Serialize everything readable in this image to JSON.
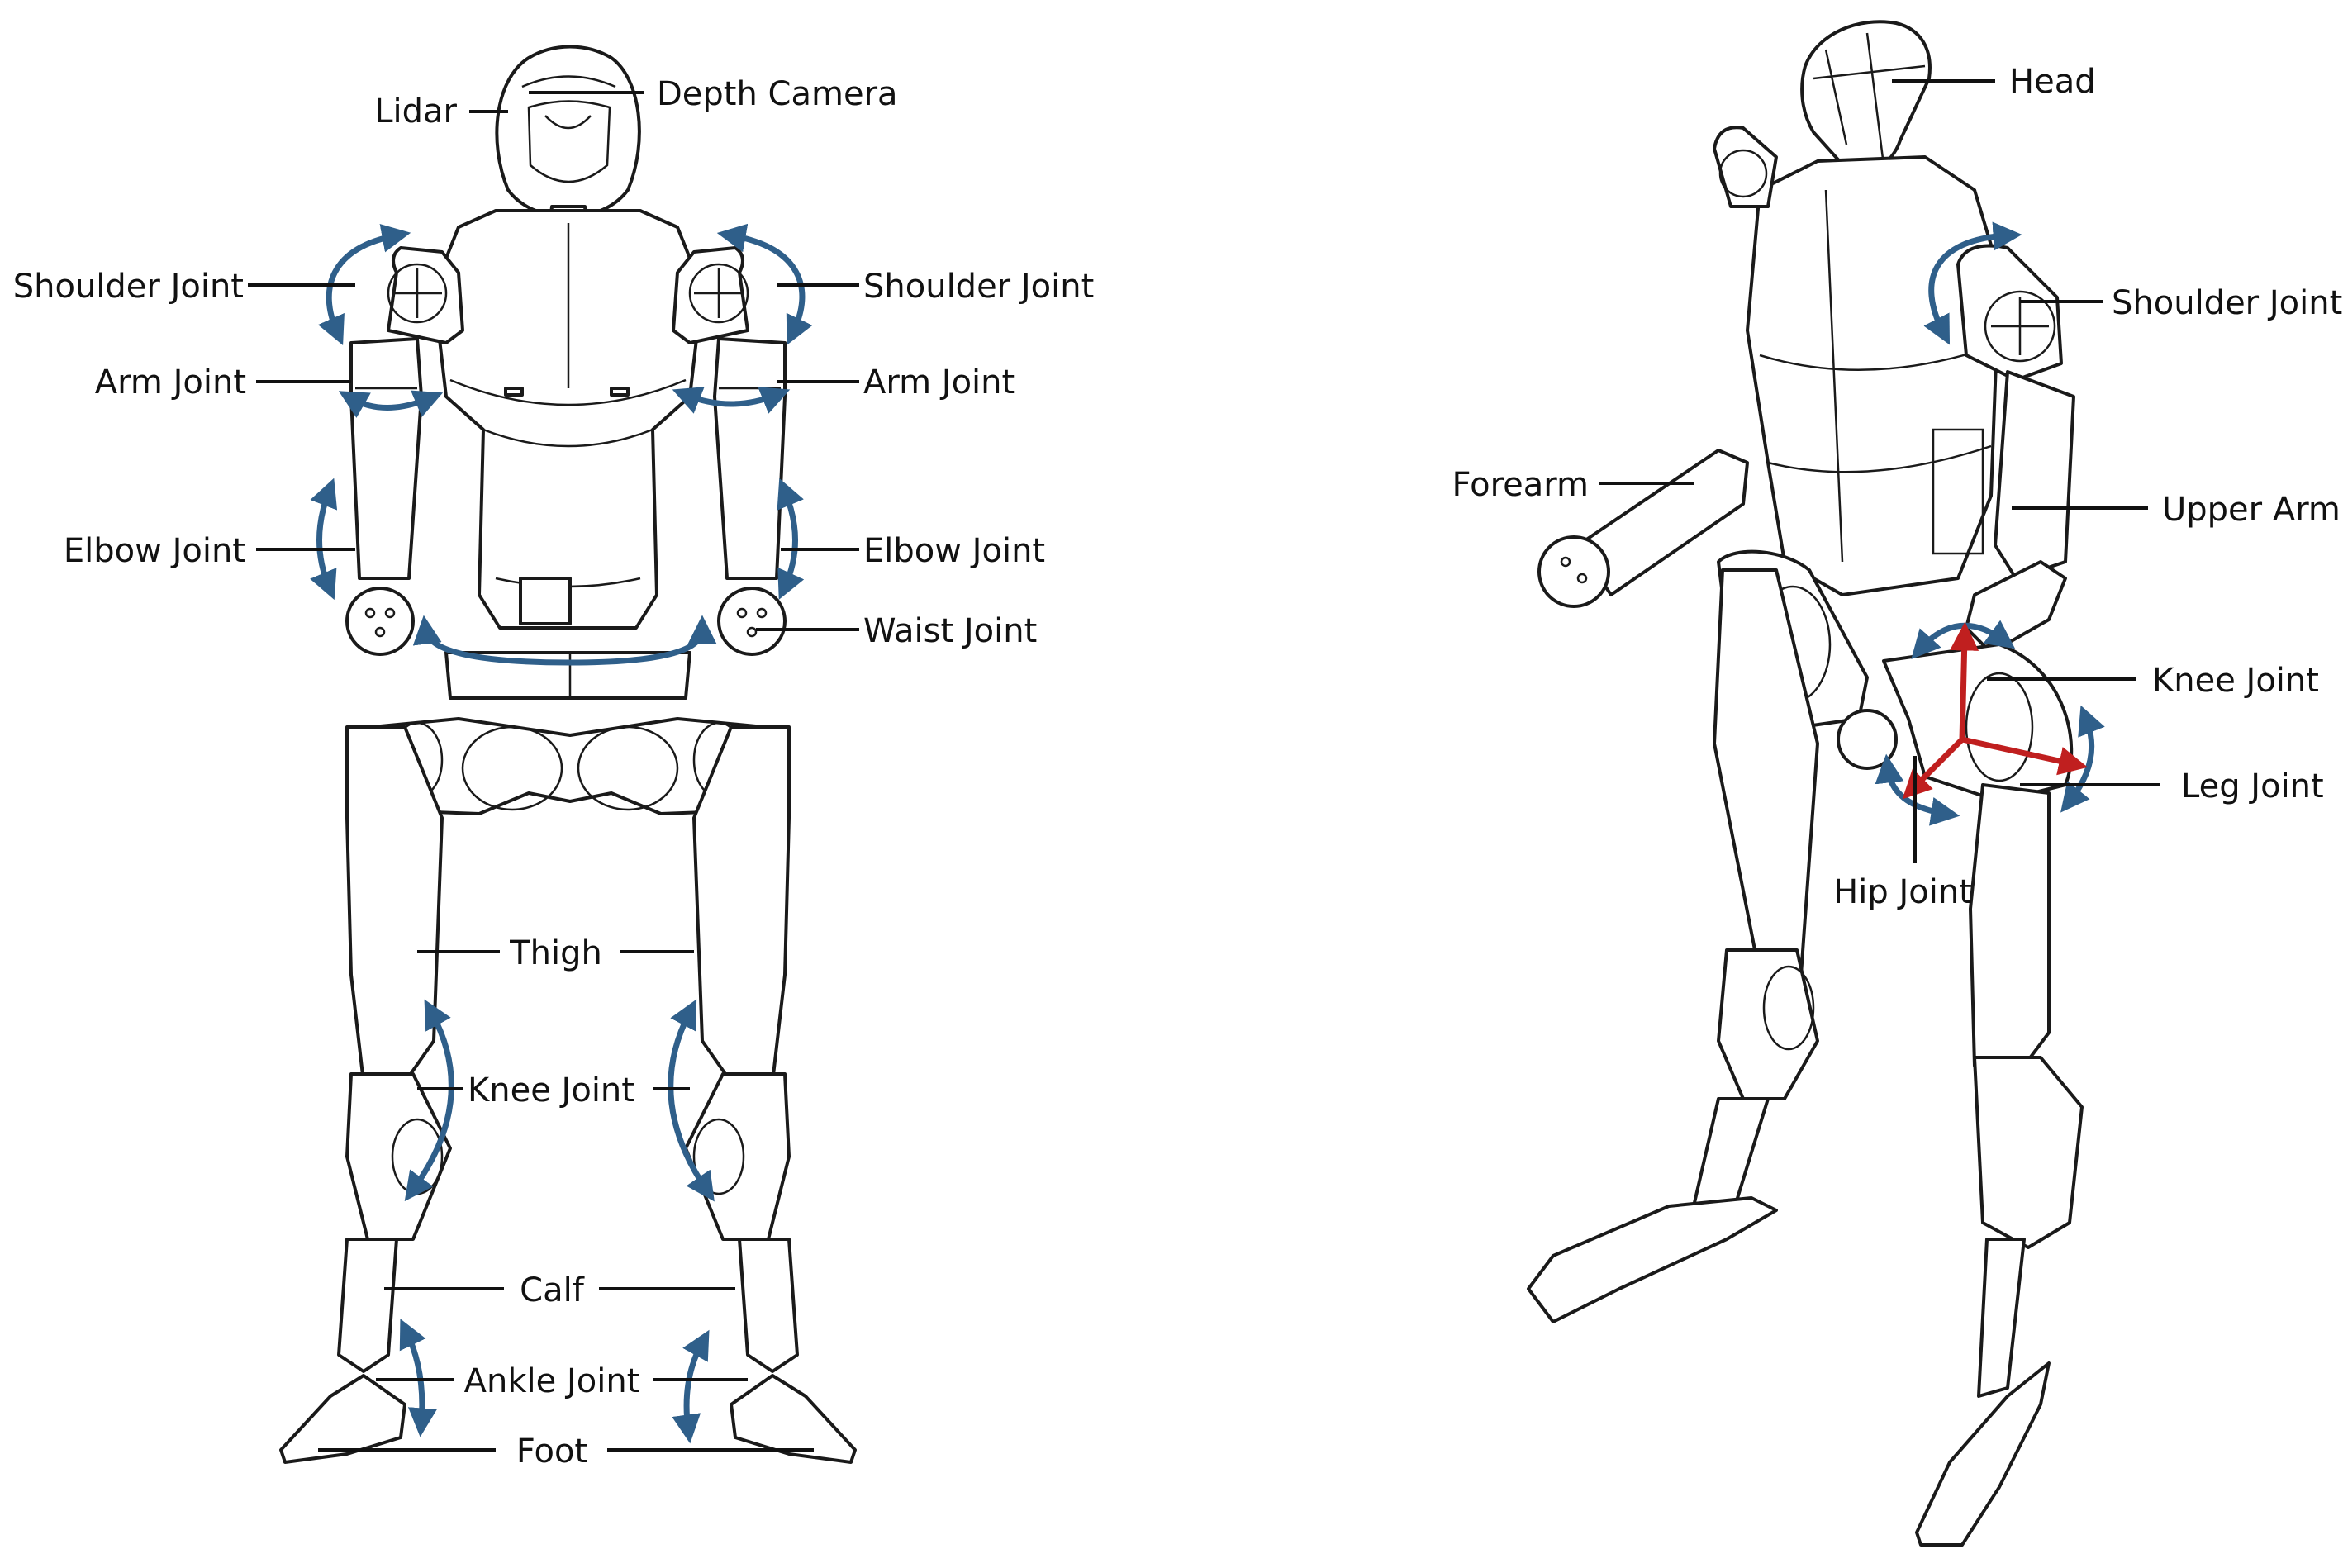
{
  "colors": {
    "rotation_arrow": "#2f5f8a",
    "axis_arrow": "#c01f1f",
    "line_art": "#1a1a1a",
    "background": "#ffffff"
  },
  "front_view": {
    "labels": {
      "lidar": "Lidar",
      "depth_camera": "Depth Camera",
      "shoulder_joint_left": "Shoulder Joint",
      "shoulder_joint_right": "Shoulder Joint",
      "arm_joint_left": "Arm Joint",
      "arm_joint_right": "Arm Joint",
      "elbow_joint_left": "Elbow Joint",
      "elbow_joint_right": "Elbow Joint",
      "waist_joint": "Waist Joint",
      "thigh": "Thigh",
      "knee_joint": "Knee Joint",
      "calf": "Calf",
      "ankle_joint": "Ankle Joint",
      "foot": "Foot"
    }
  },
  "side_view": {
    "labels": {
      "head": "Head",
      "shoulder_joint": "Shoulder Joint",
      "forearm": "Forearm",
      "upper_arm": "Upper Arm",
      "knee_joint": "Knee Joint",
      "leg_joint": "Leg Joint",
      "hip_joint": "Hip Joint"
    }
  }
}
